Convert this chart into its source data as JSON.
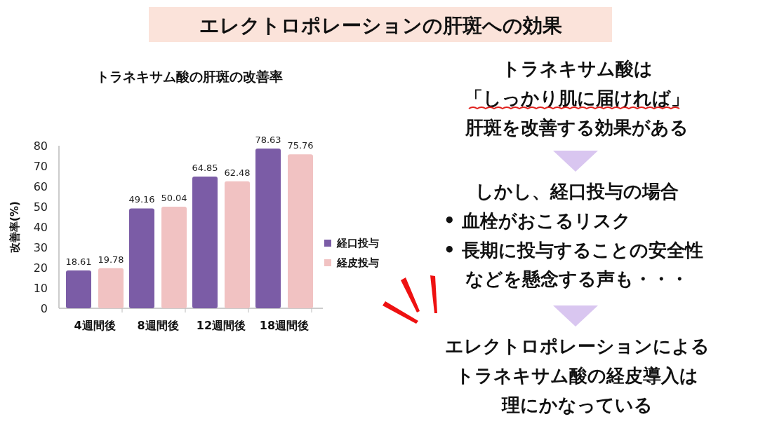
{
  "chart_data": [
    {
      "type": "bar",
      "title": "トラネキサム酸の肝斑の改善率",
      "ylabel": "改善率(%)",
      "categories": [
        "4週間後",
        "8週間後",
        "12週間後",
        "18週間後"
      ],
      "series": [
        {
          "name": "経口投与",
          "color": "#7b5ca6",
          "values": [
            18.61,
            49.16,
            64.85,
            78.63
          ]
        },
        {
          "name": "経皮投与",
          "color": "#f1c2c2",
          "values": [
            19.78,
            50.04,
            62.48,
            75.76
          ]
        }
      ],
      "ylim": [
        0,
        80
      ],
      "yticks": [
        0,
        10,
        20,
        30,
        40,
        50,
        60,
        70,
        80
      ],
      "data_labels": true,
      "legend": "right",
      "grid": false
    },
    {
      "type": "other",
      "title": "エレクトロポレーションの肝斑への効果",
      "annotations": [
        "トラネキサム酸は",
        "「しっかり肌に届ければ」",
        "肝斑を改善する効果がある",
        "しかし、経口投与の場合",
        "• 血栓がおこるリスク",
        "• 長期に投与することの安全性",
        "などを懸念する声も・・・",
        "エレクトロポレーションによる",
        "トラネキサム酸の経皮導入は",
        "理にかなっている"
      ]
    }
  ]
}
